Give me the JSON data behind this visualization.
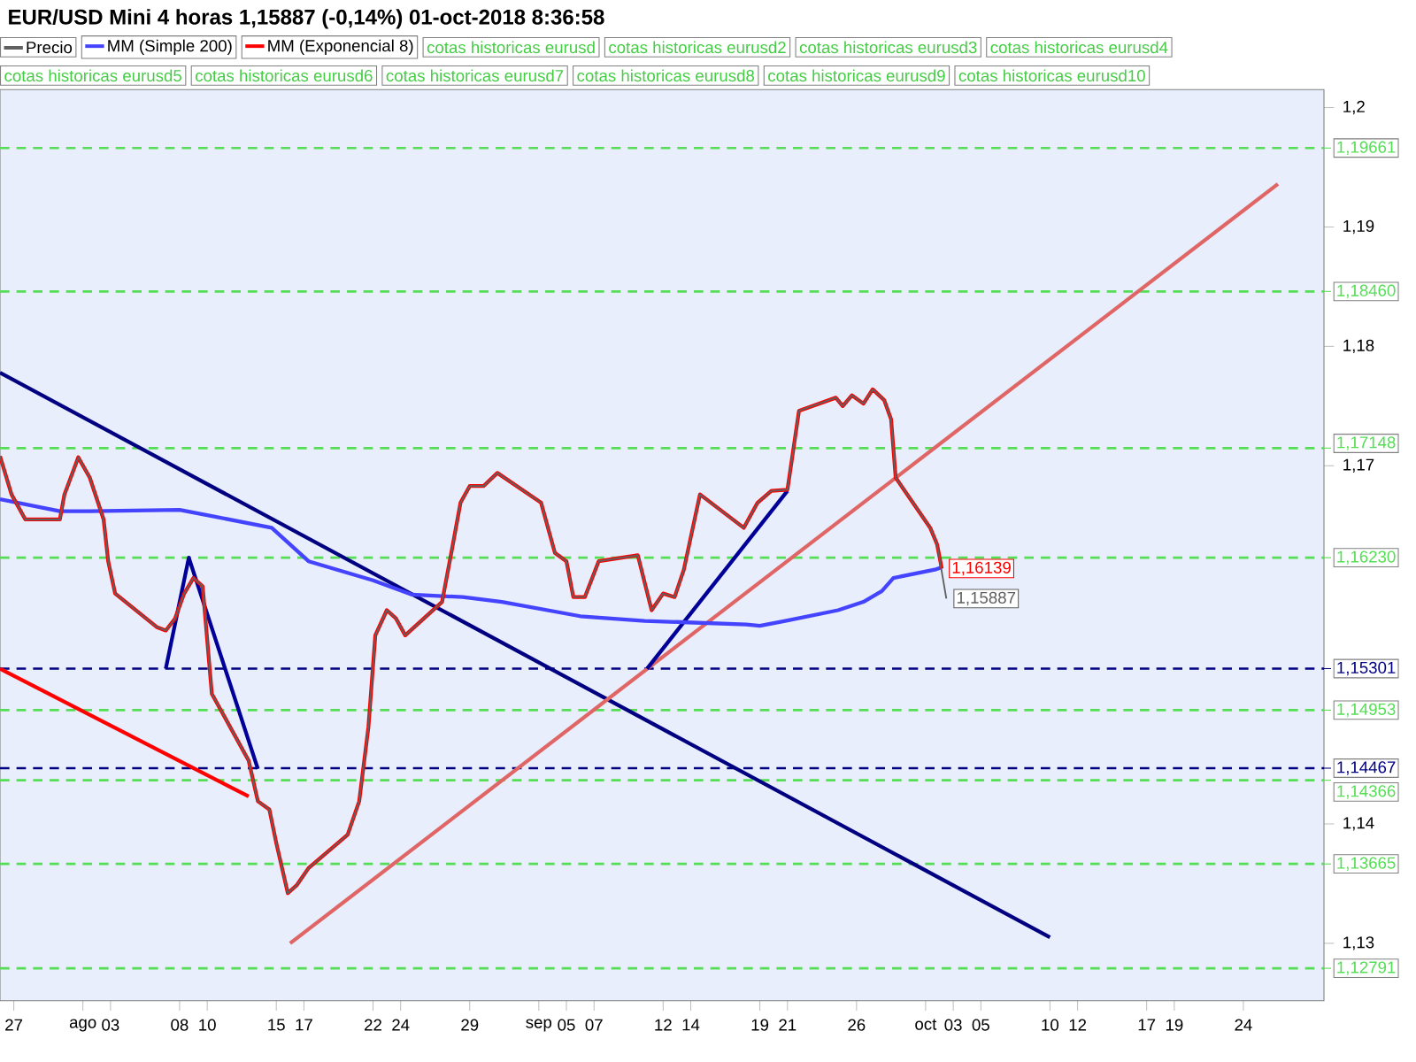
{
  "chart_data": {
    "type": "line",
    "title": "EUR/USD Mini   4 horas   1,15887 (-0,14%)   01-oct-2018 8:36:58",
    "xlim": [
      "2018-07-26T00:00",
      "2018-10-29T20:00"
    ],
    "ylim": [
      1.1252,
      1.2015
    ],
    "xticks": [
      {
        "value": "2018-07-27",
        "label": "27"
      },
      {
        "value": "2018-08-01",
        "label": "ago"
      },
      {
        "value": "2018-08-03",
        "label": "03"
      },
      {
        "value": "2018-08-08",
        "label": "08"
      },
      {
        "value": "2018-08-10",
        "label": "10"
      },
      {
        "value": "2018-08-15",
        "label": "15"
      },
      {
        "value": "2018-08-17",
        "label": "17"
      },
      {
        "value": "2018-08-22",
        "label": "22"
      },
      {
        "value": "2018-08-24",
        "label": "24"
      },
      {
        "value": "2018-08-29",
        "label": "29"
      },
      {
        "value": "2018-09-03",
        "label": "sep"
      },
      {
        "value": "2018-09-05",
        "label": "05"
      },
      {
        "value": "2018-09-07",
        "label": "07"
      },
      {
        "value": "2018-09-12",
        "label": "12"
      },
      {
        "value": "2018-09-14",
        "label": "14"
      },
      {
        "value": "2018-09-19",
        "label": "19"
      },
      {
        "value": "2018-09-21",
        "label": "21"
      },
      {
        "value": "2018-09-26",
        "label": "26"
      },
      {
        "value": "2018-10-01",
        "label": "oct"
      },
      {
        "value": "2018-10-03",
        "label": "03"
      },
      {
        "value": "2018-10-05",
        "label": "05"
      },
      {
        "value": "2018-10-10",
        "label": "10"
      },
      {
        "value": "2018-10-12",
        "label": "12"
      },
      {
        "value": "2018-10-17",
        "label": "17"
      },
      {
        "value": "2018-10-19",
        "label": "19"
      },
      {
        "value": "2018-10-24",
        "label": "24"
      }
    ],
    "yticks": [
      {
        "value": 1.13,
        "label": "1,13"
      },
      {
        "value": 1.14,
        "label": "1,14"
      },
      {
        "value": 1.17,
        "label": "1,17"
      },
      {
        "value": 1.18,
        "label": "1,18"
      },
      {
        "value": 1.19,
        "label": "1,19"
      },
      {
        "value": 1.2,
        "label": "1,2"
      }
    ],
    "legend": "top left",
    "marker": "none",
    "series": [
      {
        "name": "MM (Simple 200)",
        "color": "#4444ff",
        "x": [
          "2018-07-26T00:00",
          "2018-07-30T08:00",
          "2018-08-01T12:00",
          "2018-08-08T00:00",
          "2018-08-09T20:00",
          "2018-08-14T16:00",
          "2018-08-17T08:00",
          "2018-08-22T00:00",
          "2018-08-24T20:00",
          "2018-08-28T12:00",
          "2018-08-31T08:00",
          "2018-09-06T00:00",
          "2018-09-10T16:00",
          "2018-09-13T08:00",
          "2018-09-18T00:00",
          "2018-09-19T00:00",
          "2018-09-20T20:00",
          "2018-09-24T16:00",
          "2018-09-26T12:00",
          "2018-09-27T20:00",
          "2018-09-28T16:00",
          "2018-10-01T16:00",
          "2018-10-02T04:00"
        ],
        "values": [
          1.1672,
          1.1662,
          1.1662,
          1.1663,
          1.1659,
          1.1648,
          1.162,
          1.1604,
          1.1592,
          1.159,
          1.1586,
          1.1574,
          1.157,
          1.1569,
          1.1567,
          1.1566,
          1.157,
          1.1579,
          1.1586,
          1.1595,
          1.1606,
          1.1613,
          1.1615
        ]
      },
      {
        "name": "MM (Exponencial 8)",
        "color": "#ff0000",
        "x": [
          "2018-07-26T00:00",
          "2018-07-26T20:00",
          "2018-07-27T20:00",
          "2018-07-30T08:00",
          "2018-07-30T16:00",
          "2018-07-31T16:00",
          "2018-08-01T12:00",
          "2018-08-02T12:00",
          "2018-08-02T20:00",
          "2018-08-03T08:00",
          "2018-08-06T08:00",
          "2018-08-07T00:00",
          "2018-08-07T16:00",
          "2018-08-08T08:00",
          "2018-08-09T00:00",
          "2018-08-09T16:00",
          "2018-08-10T08:00",
          "2018-08-13T00:00",
          "2018-08-13T16:00",
          "2018-08-14T12:00",
          "2018-08-15T00:00",
          "2018-08-15T20:00",
          "2018-08-16T12:00",
          "2018-08-17T08:00",
          "2018-08-20T04:00",
          "2018-08-21T00:00",
          "2018-08-21T16:00",
          "2018-08-22T04:00",
          "2018-08-23T00:00",
          "2018-08-23T16:00",
          "2018-08-24T08:00",
          "2018-08-27T00:00",
          "2018-08-27T16:00",
          "2018-08-28T08:00",
          "2018-08-29T00:00",
          "2018-08-30T00:00",
          "2018-08-31T00:00",
          "2018-09-03T04:00",
          "2018-09-04T04:00",
          "2018-09-05T00:00",
          "2018-09-05T12:00",
          "2018-09-06T08:00",
          "2018-09-07T08:00",
          "2018-09-10T04:00",
          "2018-09-11T04:00",
          "2018-09-12T00:00",
          "2018-09-12T20:00",
          "2018-09-13T12:00",
          "2018-09-14T16:00",
          "2018-09-17T20:00",
          "2018-09-18T20:00",
          "2018-09-19T20:00",
          "2018-09-21T00:00",
          "2018-09-21T20:00",
          "2018-09-24T12:00",
          "2018-09-25T00:00",
          "2018-09-25T16:00",
          "2018-09-26T12:00",
          "2018-09-27T04:00",
          "2018-09-28T00:00",
          "2018-09-28T12:00",
          "2018-09-28T20:00",
          "2018-10-01T08:00",
          "2018-10-01T20:00",
          "2018-10-02T04:00"
        ],
        "values": [
          1.1708,
          1.1676,
          1.1655,
          1.1655,
          1.1676,
          1.1707,
          1.169,
          1.1655,
          1.162,
          1.1593,
          1.1565,
          1.1562,
          1.1572,
          1.1593,
          1.1606,
          1.1599,
          1.1509,
          1.1453,
          1.1419,
          1.1412,
          1.1384,
          1.1342,
          1.1349,
          1.1363,
          1.1391,
          1.1419,
          1.1481,
          1.1558,
          1.1579,
          1.1572,
          1.1558,
          1.1586,
          1.1627,
          1.1669,
          1.1683,
          1.1683,
          1.1694,
          1.1669,
          1.1627,
          1.162,
          1.159,
          1.159,
          1.162,
          1.1625,
          1.1579,
          1.1593,
          1.159,
          1.1613,
          1.1676,
          1.1648,
          1.1669,
          1.1679,
          1.168,
          1.1746,
          1.1757,
          1.175,
          1.1759,
          1.1752,
          1.1764,
          1.1755,
          1.1739,
          1.169,
          1.1648,
          1.1634,
          1.16139
        ],
        "value_labels": [
          null,
          null,
          null,
          null,
          null,
          null,
          null,
          null,
          null,
          null,
          null,
          null,
          null,
          null,
          null,
          null,
          null,
          null,
          null,
          null,
          null,
          null,
          null,
          null,
          null,
          null,
          null,
          null,
          null,
          null,
          null,
          null,
          null,
          null,
          null,
          null,
          null,
          null,
          null,
          null,
          null,
          null,
          null,
          null,
          null,
          null,
          null,
          null,
          null,
          null,
          null,
          null,
          null,
          null,
          null,
          null,
          null,
          null,
          null,
          null,
          null,
          null,
          null,
          null,
          "1,16139"
        ]
      },
      {
        "name": "Precio",
        "color": "#606060",
        "x": [
          "2018-07-26T00:00",
          "2018-07-26T20:00",
          "2018-07-27T20:00",
          "2018-07-30T08:00",
          "2018-07-30T16:00",
          "2018-07-31T16:00",
          "2018-08-01T12:00",
          "2018-08-02T12:00",
          "2018-08-02T20:00",
          "2018-08-03T08:00",
          "2018-08-06T08:00",
          "2018-08-07T00:00",
          "2018-08-07T16:00",
          "2018-08-08T08:00",
          "2018-08-09T00:00",
          "2018-08-09T16:00",
          "2018-08-10T08:00",
          "2018-08-13T00:00",
          "2018-08-13T16:00",
          "2018-08-14T12:00",
          "2018-08-15T00:00",
          "2018-08-15T20:00",
          "2018-08-16T12:00",
          "2018-08-17T08:00",
          "2018-08-20T04:00",
          "2018-08-21T00:00",
          "2018-08-21T16:00",
          "2018-08-22T04:00",
          "2018-08-23T00:00",
          "2018-08-23T16:00",
          "2018-08-24T08:00",
          "2018-08-27T00:00",
          "2018-08-27T16:00",
          "2018-08-28T08:00",
          "2018-08-29T00:00",
          "2018-08-30T00:00",
          "2018-08-31T00:00",
          "2018-09-03T04:00",
          "2018-09-04T04:00",
          "2018-09-05T00:00",
          "2018-09-05T12:00",
          "2018-09-06T08:00",
          "2018-09-07T08:00",
          "2018-09-10T04:00",
          "2018-09-11T04:00",
          "2018-09-12T00:00",
          "2018-09-12T20:00",
          "2018-09-13T12:00",
          "2018-09-14T16:00",
          "2018-09-17T20:00",
          "2018-09-18T20:00",
          "2018-09-19T20:00",
          "2018-09-21T00:00",
          "2018-09-21T20:00",
          "2018-09-24T12:00",
          "2018-09-25T00:00",
          "2018-09-25T16:00",
          "2018-09-26T12:00",
          "2018-09-27T04:00",
          "2018-09-28T00:00",
          "2018-09-28T12:00",
          "2018-09-28T20:00",
          "2018-10-01T08:00",
          "2018-10-01T20:00",
          "2018-10-02T12:00"
        ],
        "values": [
          1.1708,
          1.1676,
          1.1655,
          1.1655,
          1.1676,
          1.1707,
          1.169,
          1.1655,
          1.162,
          1.1593,
          1.1565,
          1.1562,
          1.1572,
          1.1593,
          1.1606,
          1.1599,
          1.1509,
          1.1453,
          1.1419,
          1.1412,
          1.1384,
          1.1342,
          1.1349,
          1.1363,
          1.1391,
          1.1419,
          1.1481,
          1.1558,
          1.1579,
          1.1572,
          1.1558,
          1.1586,
          1.1627,
          1.1669,
          1.1683,
          1.1683,
          1.1694,
          1.1669,
          1.1627,
          1.162,
          1.159,
          1.159,
          1.162,
          1.1625,
          1.1579,
          1.1593,
          1.159,
          1.1613,
          1.1676,
          1.1648,
          1.1669,
          1.1679,
          1.168,
          1.1746,
          1.1757,
          1.175,
          1.1759,
          1.1752,
          1.1764,
          1.1755,
          1.1739,
          1.169,
          1.1648,
          1.1634,
          1.15887
        ],
        "value_labels": [
          null,
          null,
          null,
          null,
          null,
          null,
          null,
          null,
          null,
          null,
          null,
          null,
          null,
          null,
          null,
          null,
          null,
          null,
          null,
          null,
          null,
          null,
          null,
          null,
          null,
          null,
          null,
          null,
          null,
          null,
          null,
          null,
          null,
          null,
          null,
          null,
          null,
          null,
          null,
          null,
          null,
          null,
          null,
          null,
          null,
          null,
          null,
          null,
          null,
          null,
          null,
          null,
          null,
          null,
          null,
          null,
          null,
          null,
          null,
          null,
          null,
          null,
          null,
          null,
          "1,15887"
        ]
      },
      {
        "type": "line",
        "color": "#000080",
        "x": [
          "2018-07-26T00:00",
          "2018-10-10T00:00"
        ],
        "values": [
          1.1778,
          1.1305
        ]
      },
      {
        "type": "line",
        "color": "#ff0000",
        "x": [
          "2018-07-26T00:00",
          "2018-08-13T00:00"
        ],
        "values": [
          1.153,
          1.1423
        ]
      },
      {
        "type": "line",
        "color": "#e06666",
        "x": [
          "2018-08-16T00:00",
          "2018-10-26T12:00"
        ],
        "values": [
          1.13,
          1.1936
        ]
      },
      {
        "type": "line",
        "color": "#000099",
        "x": [
          "2018-08-07T00:00",
          "2018-08-08T16:00",
          "2018-08-13T16:00"
        ],
        "values": [
          1.153,
          1.1623,
          1.1446
        ]
      },
      {
        "type": "line",
        "color": "#000099",
        "x": [
          "2018-09-10T20:00",
          "2018-09-21T00:00"
        ],
        "values": [
          1.153,
          1.1679
        ]
      }
    ],
    "ref_lines": [
      {
        "axis": "y",
        "value": 1.19661,
        "label": "1,19661",
        "color": "#55dd55",
        "line_style": "dashed"
      },
      {
        "axis": "y",
        "value": 1.1846,
        "label": "1,18460",
        "color": "#55dd55",
        "line_style": "dashed"
      },
      {
        "axis": "y",
        "value": 1.17148,
        "label": "1,17148",
        "color": "#55dd55",
        "line_style": "dashed"
      },
      {
        "axis": "y",
        "value": 1.1623,
        "label": "1,16230",
        "color": "#55dd55",
        "line_style": "dashed"
      },
      {
        "axis": "y",
        "value": 1.15301,
        "label": "1,15301",
        "color": "#000080",
        "line_style": "dashed"
      },
      {
        "axis": "y",
        "value": 1.14953,
        "label": "1,14953",
        "color": "#55dd55",
        "line_style": "dashed"
      },
      {
        "axis": "y",
        "value": 1.14467,
        "label": "1,14467",
        "color": "#000080",
        "line_style": "dashed"
      },
      {
        "axis": "y",
        "value": 1.14366,
        "label": "1,14366",
        "color": "#55dd55",
        "line_style": "dashed"
      },
      {
        "axis": "y",
        "value": 1.13665,
        "label": "1,13665",
        "color": "#55dd55",
        "line_style": "dashed"
      },
      {
        "axis": "y",
        "value": 1.12791,
        "label": "1,12791",
        "color": "#55dd55",
        "line_style": "dashed"
      }
    ],
    "annotations": [
      "cotas historicas eurusd",
      "cotas historicas eurusd2",
      "cotas historicas eurusd3",
      "cotas historicas eurusd4",
      "cotas historicas eurusd5",
      "cotas historicas eurusd6",
      "cotas historicas eurusd7",
      "cotas historicas eurusd8",
      "cotas historicas eurusd9",
      "cotas historicas eurusd10"
    ]
  }
}
